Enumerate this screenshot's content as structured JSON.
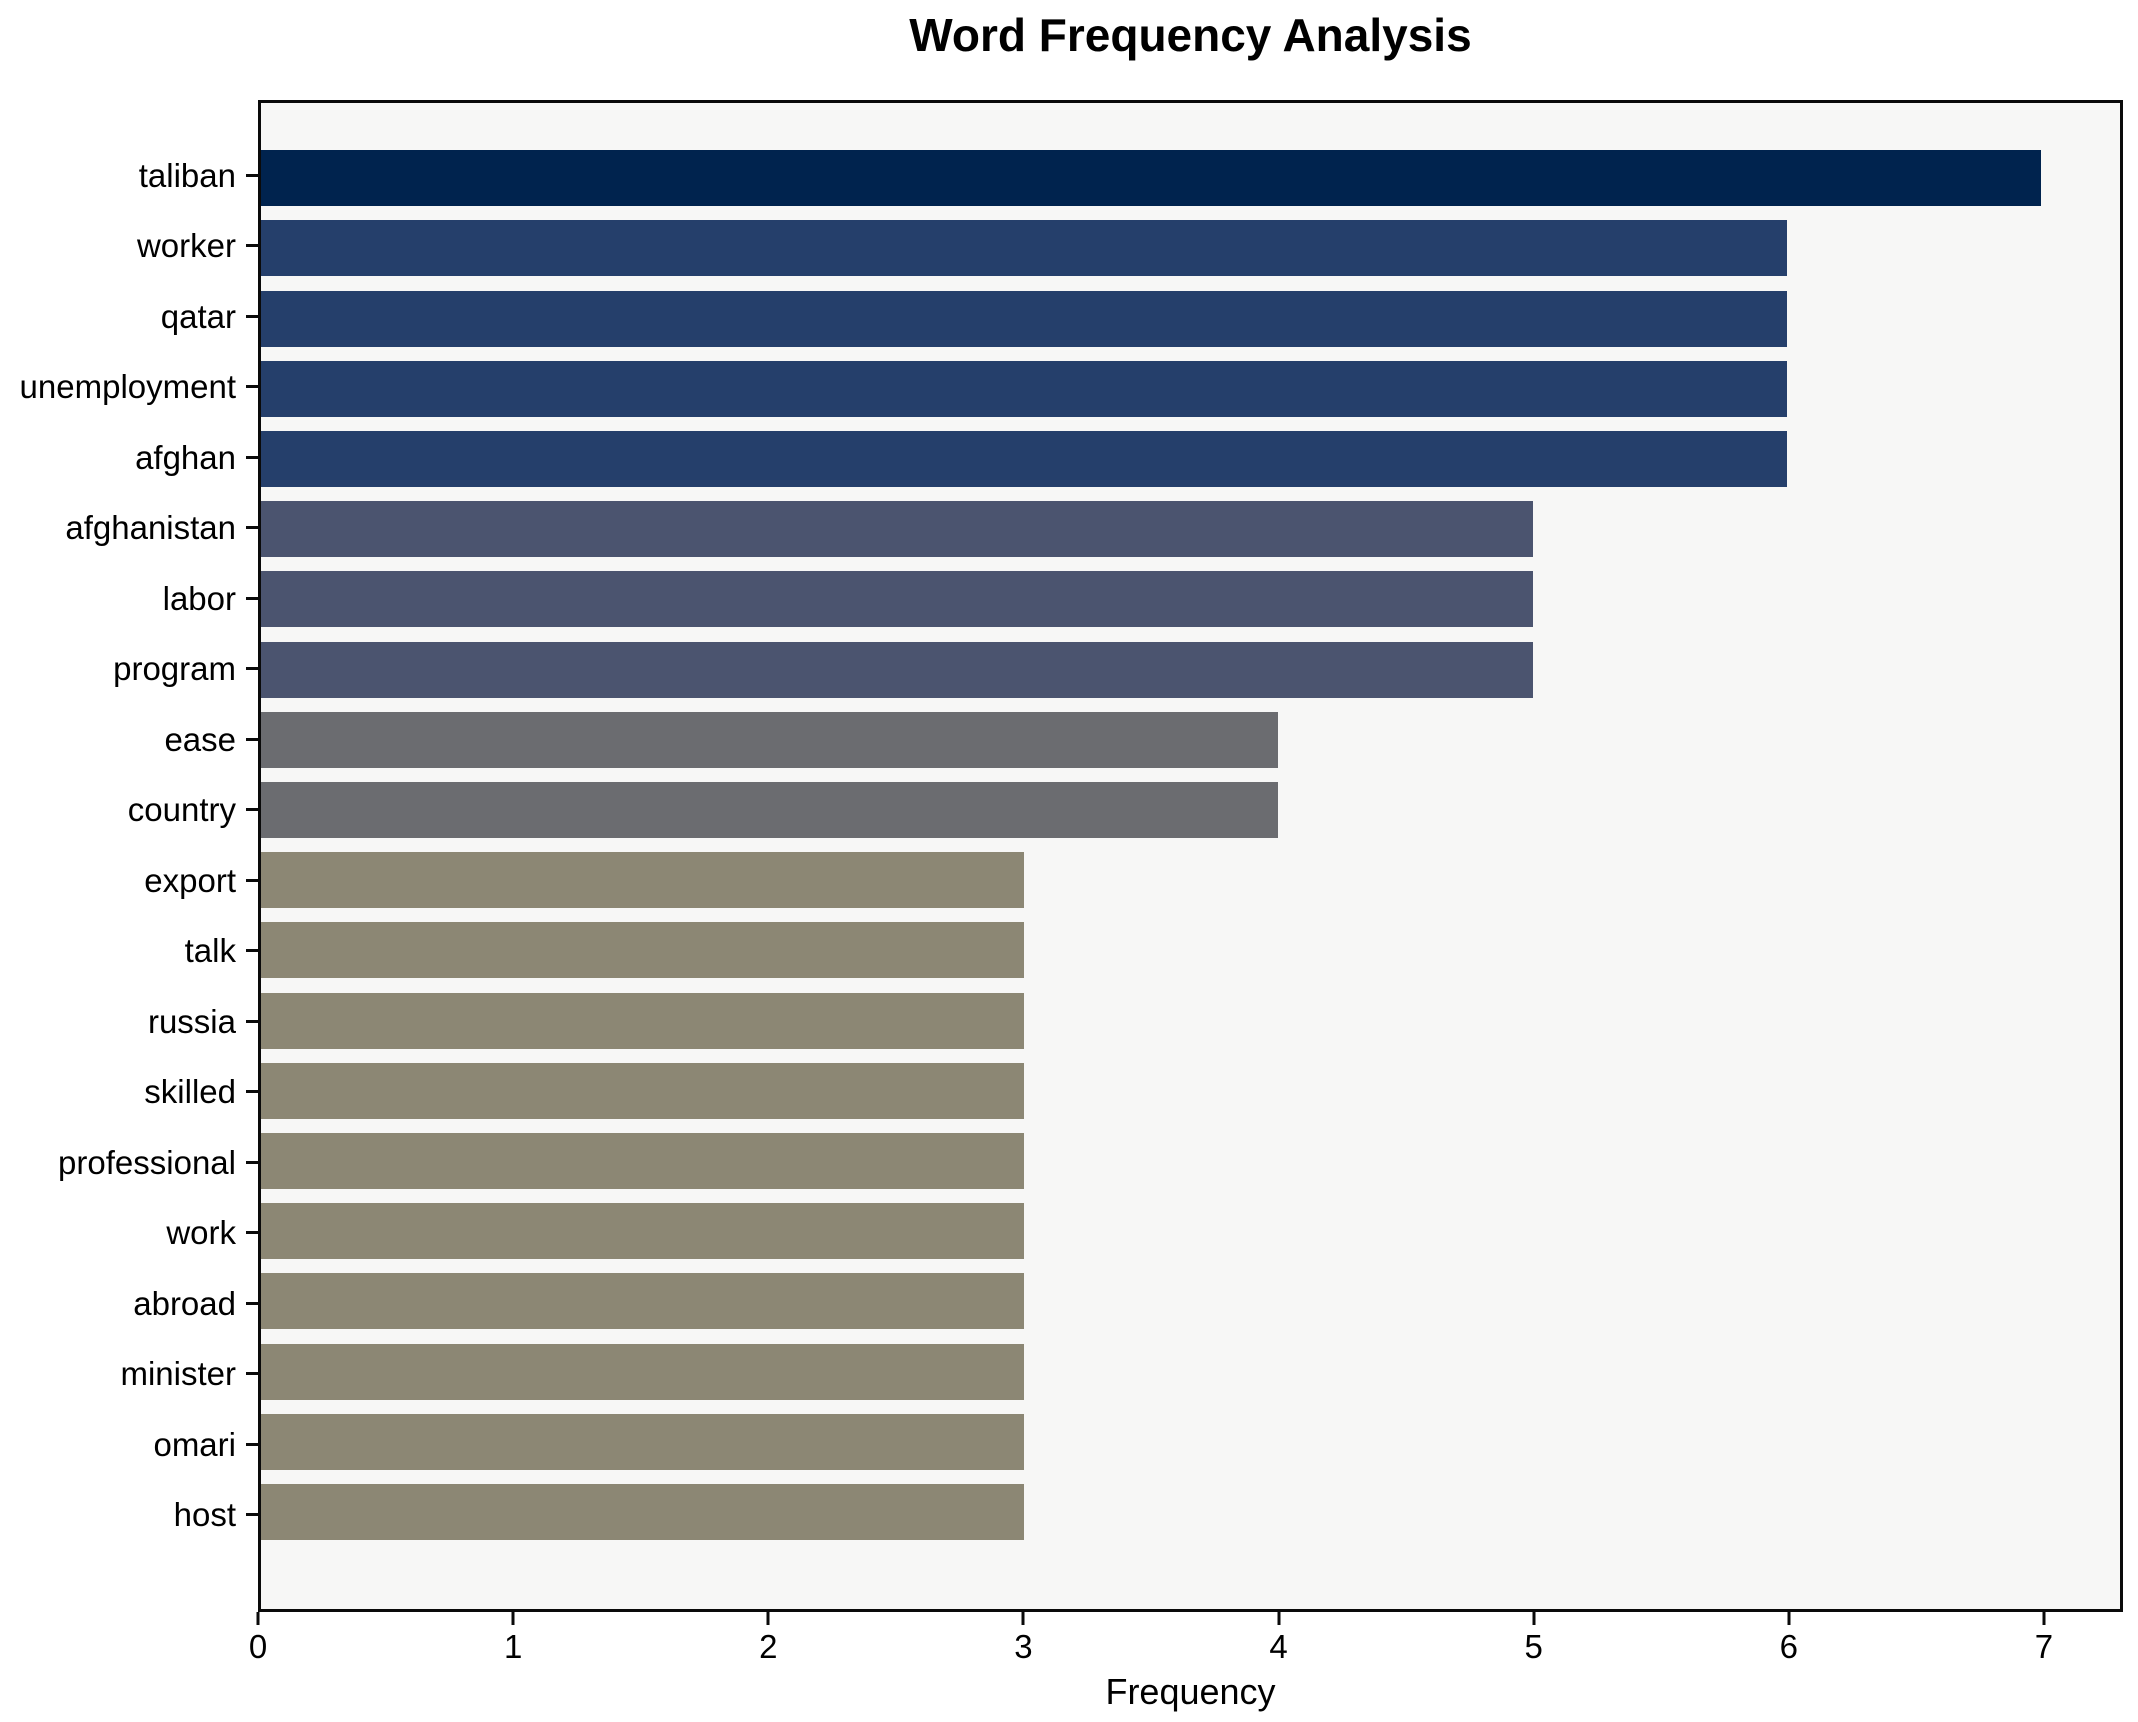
{
  "chart_data": {
    "type": "bar",
    "orientation": "horizontal",
    "title": "Word Frequency Analysis",
    "xlabel": "Frequency",
    "ylabel": "",
    "categories": [
      "taliban",
      "worker",
      "qatar",
      "unemployment",
      "afghan",
      "afghanistan",
      "labor",
      "program",
      "ease",
      "country",
      "export",
      "talk",
      "russia",
      "skilled",
      "professional",
      "work",
      "abroad",
      "minister",
      "omari",
      "host"
    ],
    "values": [
      7,
      6,
      6,
      6,
      6,
      5,
      5,
      5,
      4,
      4,
      3,
      3,
      3,
      3,
      3,
      3,
      3,
      3,
      3,
      3
    ],
    "xticks": [
      0,
      1,
      2,
      3,
      4,
      5,
      6,
      7
    ],
    "xlim": [
      0,
      7.31
    ],
    "grid": false,
    "legend": null,
    "colors": {
      "bar_color_by_value": {
        "7": "#00234e",
        "6": "#253f6b",
        "5": "#4b546f",
        "4": "#6b6c70",
        "3": "#8c8774"
      },
      "plot_background": "#f7f7f6",
      "figure_background": "#ffffff",
      "spine": "#0a0a0a",
      "text": "#000000"
    }
  }
}
